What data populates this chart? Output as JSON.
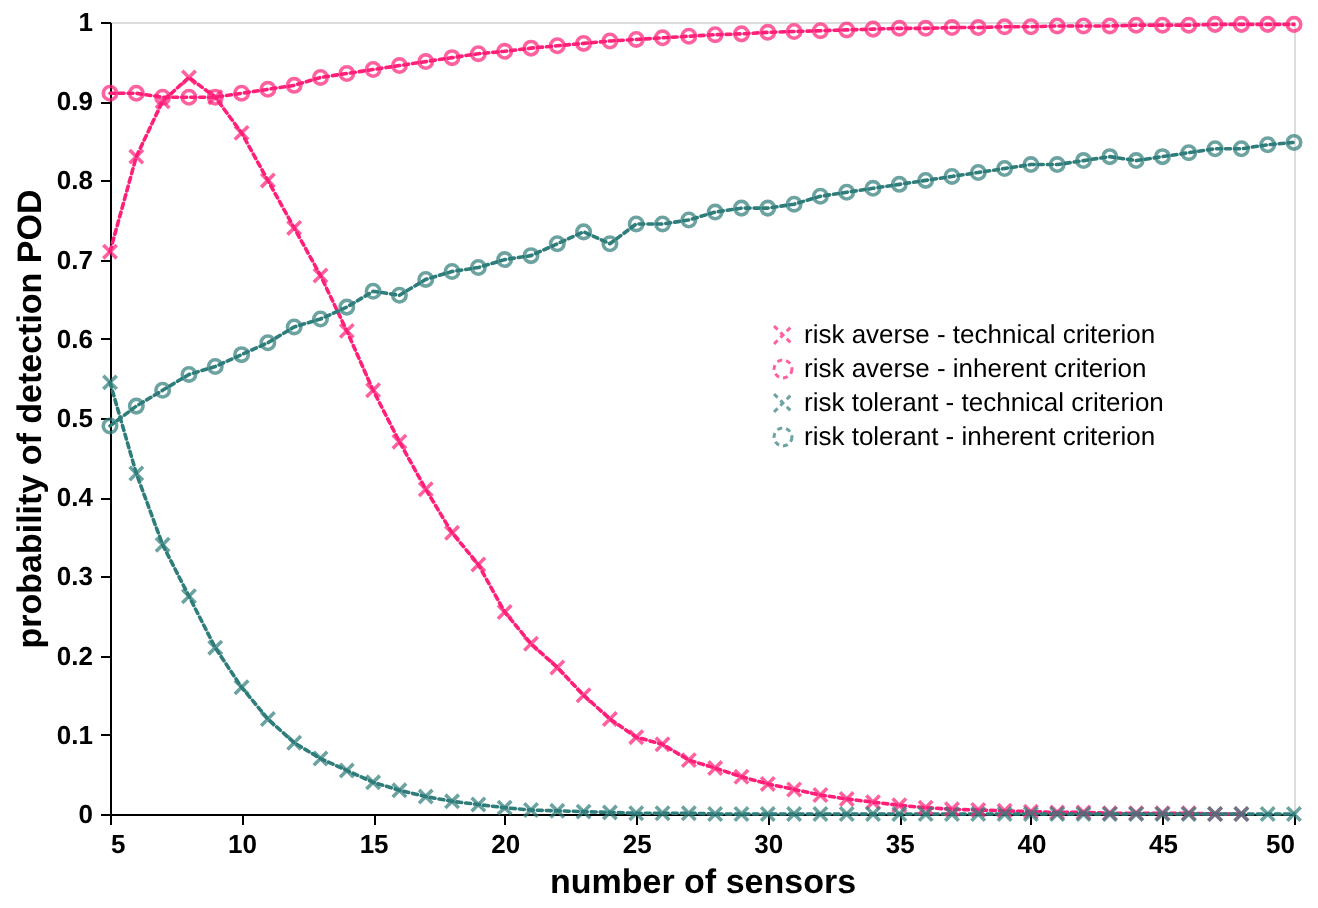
{
  "chart_data": {
    "type": "line",
    "xlabel": "number of sensors",
    "ylabel": "probability of detection POD",
    "x": [
      5,
      6,
      7,
      8,
      9,
      10,
      11,
      12,
      13,
      14,
      15,
      16,
      17,
      18,
      19,
      20,
      21,
      22,
      23,
      24,
      25,
      26,
      27,
      28,
      29,
      30,
      31,
      32,
      33,
      34,
      35,
      36,
      37,
      38,
      39,
      40,
      41,
      42,
      43,
      44,
      45,
      46,
      47,
      48,
      49,
      50
    ],
    "series": [
      {
        "name": "risk averse - technical criterion",
        "color": "#ff1f78",
        "marker": "cross",
        "values": [
          0.71,
          0.83,
          0.9,
          0.93,
          0.905,
          0.86,
          0.8,
          0.74,
          0.68,
          0.61,
          0.535,
          0.47,
          0.41,
          0.355,
          0.315,
          0.255,
          0.215,
          0.185,
          0.15,
          0.12,
          0.097,
          0.088,
          0.068,
          0.058,
          0.047,
          0.038,
          0.031,
          0.024,
          0.019,
          0.015,
          0.011,
          0.008,
          0.006,
          0.005,
          0.004,
          0.003,
          0.002,
          0.002,
          0.001,
          0.001,
          0.001,
          0.001,
          0,
          0,
          null,
          null
        ]
      },
      {
        "name": "risk averse - inherent criterion",
        "color": "#ff1f78",
        "marker": "circle",
        "values": [
          0.91,
          0.91,
          0.905,
          0.905,
          0.905,
          0.91,
          0.915,
          0.92,
          0.93,
          0.935,
          0.94,
          0.945,
          0.95,
          0.955,
          0.96,
          0.963,
          0.967,
          0.97,
          0.973,
          0.976,
          0.978,
          0.98,
          0.982,
          0.984,
          0.985,
          0.987,
          0.988,
          0.989,
          0.99,
          0.991,
          0.992,
          0.992,
          0.993,
          0.993,
          0.994,
          0.994,
          0.995,
          0.995,
          0.995,
          0.996,
          0.996,
          0.996,
          0.997,
          0.997,
          0.997,
          0.997
        ]
      },
      {
        "name": "risk tolerant - technical criterion",
        "color": "#2e7d7a",
        "marker": "cross",
        "values": [
          0.545,
          0.43,
          0.34,
          0.275,
          0.21,
          0.16,
          0.12,
          0.09,
          0.07,
          0.055,
          0.04,
          0.03,
          0.022,
          0.016,
          0.012,
          0.008,
          0.005,
          0.004,
          0.003,
          0.002,
          0.001,
          0.001,
          0.001,
          0,
          0,
          0,
          0,
          0,
          0,
          0,
          0,
          0,
          0,
          0,
          0,
          0,
          0,
          0,
          0,
          0,
          0,
          0,
          0,
          0,
          0,
          0
        ]
      },
      {
        "name": "risk tolerant - inherent criterion",
        "color": "#2e7d7a",
        "marker": "circle",
        "values": [
          0.49,
          0.515,
          0.535,
          0.555,
          0.565,
          0.58,
          0.595,
          0.615,
          0.625,
          0.64,
          0.66,
          0.655,
          0.675,
          0.685,
          0.69,
          0.7,
          0.705,
          0.72,
          0.735,
          0.72,
          0.745,
          0.745,
          0.75,
          0.76,
          0.765,
          0.765,
          0.77,
          0.78,
          0.785,
          0.79,
          0.795,
          0.8,
          0.805,
          0.81,
          0.815,
          0.82,
          0.82,
          0.825,
          0.83,
          0.825,
          0.83,
          0.835,
          0.84,
          0.84,
          0.845,
          0.848
        ]
      }
    ],
    "xlim": [
      5,
      50
    ],
    "xticks": [
      5,
      10,
      15,
      20,
      25,
      30,
      35,
      40,
      45,
      50
    ],
    "ylim": [
      0,
      1
    ],
    "yticks": [
      0,
      0.1,
      0.2,
      0.3,
      0.4,
      0.5,
      0.6,
      0.7,
      0.8,
      0.9,
      1
    ],
    "grid": false,
    "legend": "right",
    "line_style": "dotted"
  }
}
